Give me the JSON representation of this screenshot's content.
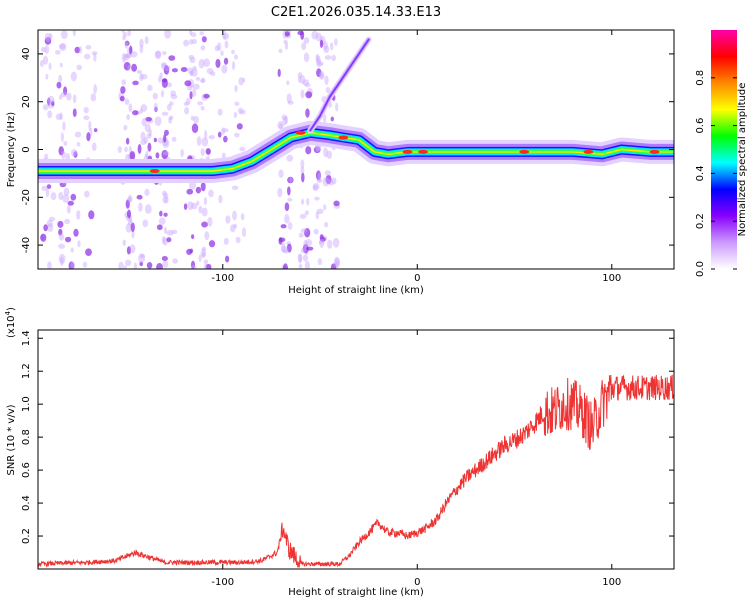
{
  "title": "C2E1.2026.035.14.33.E13",
  "chart_data": [
    {
      "type": "heatmap",
      "name": "spectrogram",
      "xlabel": "Height of straight line (km)",
      "ylabel": "Frequency (Hz)",
      "xlim": [
        -195,
        132
      ],
      "ylim": [
        -50,
        50
      ],
      "x_ticks": [
        -100,
        0,
        100
      ],
      "x_tick_labels": [
        "-100",
        "0",
        "100"
      ],
      "y_ticks": [
        -40,
        -20,
        0,
        20,
        40
      ],
      "y_tick_labels": [
        "-40",
        "-20",
        "0",
        "20",
        "40"
      ],
      "colorbar": {
        "label": "Normalized spectral amplitude",
        "range": [
          0,
          1
        ],
        "ticks": [
          0.0,
          0.2,
          0.4,
          0.6,
          0.8
        ],
        "tick_labels": [
          "0.0",
          "0.2",
          "0.4",
          "0.6",
          "0.8"
        ],
        "colors": [
          "#ffffff",
          "#cc99ff",
          "#8800ff",
          "#0000ff",
          "#00ffff",
          "#00ff00",
          "#ffff00",
          "#ff8800",
          "#ff0000",
          "#ff00aa"
        ]
      },
      "main_trace": {
        "x": [
          -195,
          -180,
          -160,
          -140,
          -120,
          -105,
          -95,
          -85,
          -75,
          -65,
          -55,
          -45,
          -38,
          -30,
          -22,
          -15,
          -5,
          5,
          20,
          40,
          60,
          80,
          95,
          105,
          120,
          132
        ],
        "y": [
          -9,
          -9,
          -9,
          -9,
          -9,
          -9,
          -8,
          -5,
          0,
          5,
          7,
          6,
          5,
          4,
          -1,
          -2,
          -1,
          -1,
          -1,
          -1,
          -1,
          -1,
          -2,
          0,
          -1,
          -1
        ]
      },
      "upper_trace": {
        "x": [
          -55,
          -50,
          -45,
          -40,
          -35,
          -30,
          -25
        ],
        "y": [
          8,
          14,
          22,
          28,
          34,
          40,
          46
        ]
      }
    },
    {
      "type": "line",
      "name": "snr",
      "xlabel": "Height of straight line (km)",
      "ylabel": "SNR (10 * v/v)",
      "multiplier": "(x10",
      "multiplier_exp": "4",
      "multiplier_close": ")",
      "xlim": [
        -195,
        132
      ],
      "ylim": [
        0,
        1.45
      ],
      "x_ticks": [
        -100,
        0,
        100
      ],
      "x_tick_labels": [
        "-100",
        "0",
        "100"
      ],
      "y_ticks": [
        0.2,
        0.4,
        0.6,
        0.8,
        1.0,
        1.2,
        1.4
      ],
      "y_tick_labels": [
        "0.2",
        "0.4",
        "0.6",
        "0.8",
        "1.0",
        "1.2",
        "1.4"
      ],
      "line_color": "#ee3333",
      "series": {
        "x": [
          -195,
          -170,
          -155,
          -145,
          -130,
          -110,
          -100,
          -90,
          -80,
          -72,
          -69,
          -66,
          -60,
          -50,
          -40,
          -35,
          -30,
          -25,
          -20,
          -15,
          -10,
          -5,
          0,
          5,
          10,
          15,
          20,
          25,
          30,
          35,
          40,
          45,
          50,
          55,
          60,
          65,
          70,
          75,
          80,
          85,
          90,
          95,
          100,
          105,
          110,
          120,
          132
        ],
        "y": [
          0.03,
          0.04,
          0.05,
          0.1,
          0.04,
          0.04,
          0.04,
          0.04,
          0.05,
          0.1,
          0.25,
          0.12,
          0.03,
          0.03,
          0.03,
          0.08,
          0.16,
          0.22,
          0.28,
          0.22,
          0.22,
          0.2,
          0.22,
          0.25,
          0.3,
          0.4,
          0.48,
          0.55,
          0.6,
          0.65,
          0.7,
          0.75,
          0.78,
          0.82,
          0.88,
          0.95,
          0.95,
          1.0,
          1.0,
          0.95,
          0.85,
          1.0,
          1.1,
          1.1,
          1.1,
          1.1,
          1.1
        ]
      }
    }
  ]
}
